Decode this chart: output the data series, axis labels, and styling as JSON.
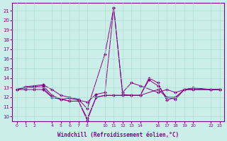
{
  "xlabel": "Windchill (Refroidissement éolien,°C)",
  "bg_color": "#cceee8",
  "line_color": "#880088",
  "grid_color": "#aaddcc",
  "ylim": [
    9.5,
    21.8
  ],
  "yticks": [
    10,
    11,
    12,
    13,
    14,
    15,
    16,
    17,
    18,
    19,
    20,
    21
  ],
  "series": [
    {
      "x": [
        0,
        1,
        2,
        3,
        4,
        5,
        6,
        7,
        8,
        10,
        11,
        12,
        13,
        14,
        16,
        17,
        18,
        19,
        20,
        22,
        23
      ],
      "y": [
        12.8,
        13.1,
        13.2,
        13.3,
        12.8,
        12.2,
        12.0,
        11.8,
        10.8,
        16.5,
        21.3,
        12.5,
        13.5,
        13.2,
        12.5,
        12.8,
        12.5,
        12.8,
        13.0,
        12.8,
        12.8
      ]
    },
    {
      "x": [
        0,
        1,
        2,
        3,
        4,
        5,
        6,
        7,
        8,
        9,
        10,
        11,
        12,
        13,
        14,
        16,
        17,
        18,
        19,
        20,
        22,
        23
      ],
      "y": [
        12.8,
        13.0,
        13.1,
        13.2,
        12.2,
        11.8,
        11.9,
        11.7,
        11.5,
        12.3,
        12.5,
        21.3,
        12.3,
        12.2,
        12.2,
        12.8,
        12.0,
        12.0,
        12.8,
        12.9,
        12.8,
        12.8
      ]
    },
    {
      "x": [
        0,
        1,
        2,
        3,
        4,
        5,
        6,
        7,
        8,
        9,
        10,
        11,
        12,
        13,
        14,
        15,
        16,
        17,
        18,
        19,
        20,
        22,
        23
      ],
      "y": [
        12.8,
        12.8,
        12.8,
        12.8,
        12.0,
        11.8,
        11.6,
        11.6,
        9.8,
        12.0,
        12.2,
        12.2,
        12.2,
        12.2,
        12.2,
        13.8,
        13.2,
        12.0,
        11.8,
        12.8,
        12.8,
        12.8,
        12.8
      ]
    },
    {
      "x": [
        0,
        1,
        2,
        3,
        4,
        5,
        6,
        7,
        8,
        9,
        10,
        11,
        12,
        13,
        14,
        15,
        16,
        17,
        18,
        19,
        20,
        22,
        23
      ],
      "y": [
        12.8,
        13.0,
        13.0,
        13.0,
        12.0,
        11.8,
        11.6,
        11.6,
        9.6,
        12.0,
        12.2,
        12.2,
        12.2,
        12.2,
        12.2,
        14.0,
        13.5,
        11.7,
        12.0,
        12.8,
        12.8,
        12.8,
        12.8
      ]
    }
  ],
  "xtick_positions": [
    0,
    1,
    2,
    4,
    5,
    6,
    7,
    8,
    10,
    11,
    12,
    13,
    14,
    16,
    17,
    18,
    19,
    20,
    22,
    23
  ],
  "xtick_labels": [
    "0",
    "1",
    "2",
    "4",
    "5",
    "6",
    "7",
    "8",
    "10",
    "11",
    "12",
    "13",
    "14",
    "16",
    "17",
    "18",
    "19",
    "20",
    "22",
    "23"
  ],
  "xlim": [
    -0.5,
    23.5
  ],
  "markersize": 2.2,
  "linewidth": 0.7
}
